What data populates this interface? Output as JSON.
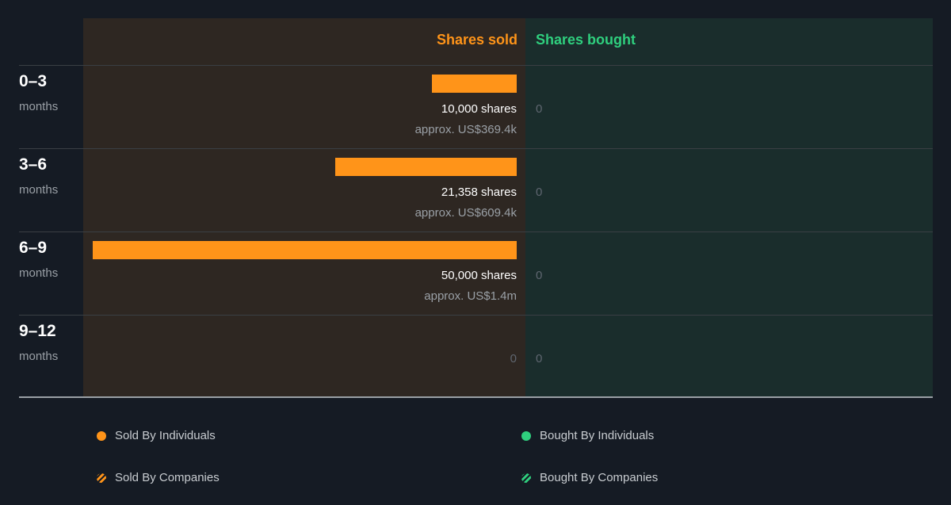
{
  "headers": {
    "sold": "Shares sold",
    "bought": "Shares bought"
  },
  "colors": {
    "sold": "#ff9419",
    "bought": "#2fcf7e",
    "sold_panel": "#2e2722",
    "bought_panel": "#1a2d2c"
  },
  "rows": [
    {
      "period": "0–3",
      "unit": "months",
      "sold_shares_text": "10,000 shares",
      "sold_approx": "approx. US$369.4k",
      "bought": "0"
    },
    {
      "period": "3–6",
      "unit": "months",
      "sold_shares_text": "21,358 shares",
      "sold_approx": "approx. US$609.4k",
      "bought": "0"
    },
    {
      "period": "6–9",
      "unit": "months",
      "sold_shares_text": "50,000 shares",
      "sold_approx": "approx. US$1.4m",
      "bought": "0"
    },
    {
      "period": "9–12",
      "unit": "months",
      "sold_zero": "0",
      "bought": "0"
    }
  ],
  "legend": {
    "sold_individuals": "Sold By Individuals",
    "bought_individuals": "Bought By Individuals",
    "sold_companies": "Sold By Companies",
    "bought_companies": "Bought By Companies"
  },
  "chart_data": {
    "type": "bar",
    "categories": [
      "0–3",
      "3–6",
      "6–9",
      "9–12"
    ],
    "series": [
      {
        "name": "Shares sold",
        "values": [
          10000,
          21358,
          50000,
          0
        ]
      },
      {
        "name": "Shares bought",
        "values": [
          0,
          0,
          0,
          0
        ]
      }
    ],
    "sold_value_usd": [
      "approx. US$369.4k",
      "approx. US$609.4k",
      "approx. US$1.4m",
      ""
    ],
    "orientation": "horizontal",
    "xlim": [
      0,
      50000
    ]
  }
}
